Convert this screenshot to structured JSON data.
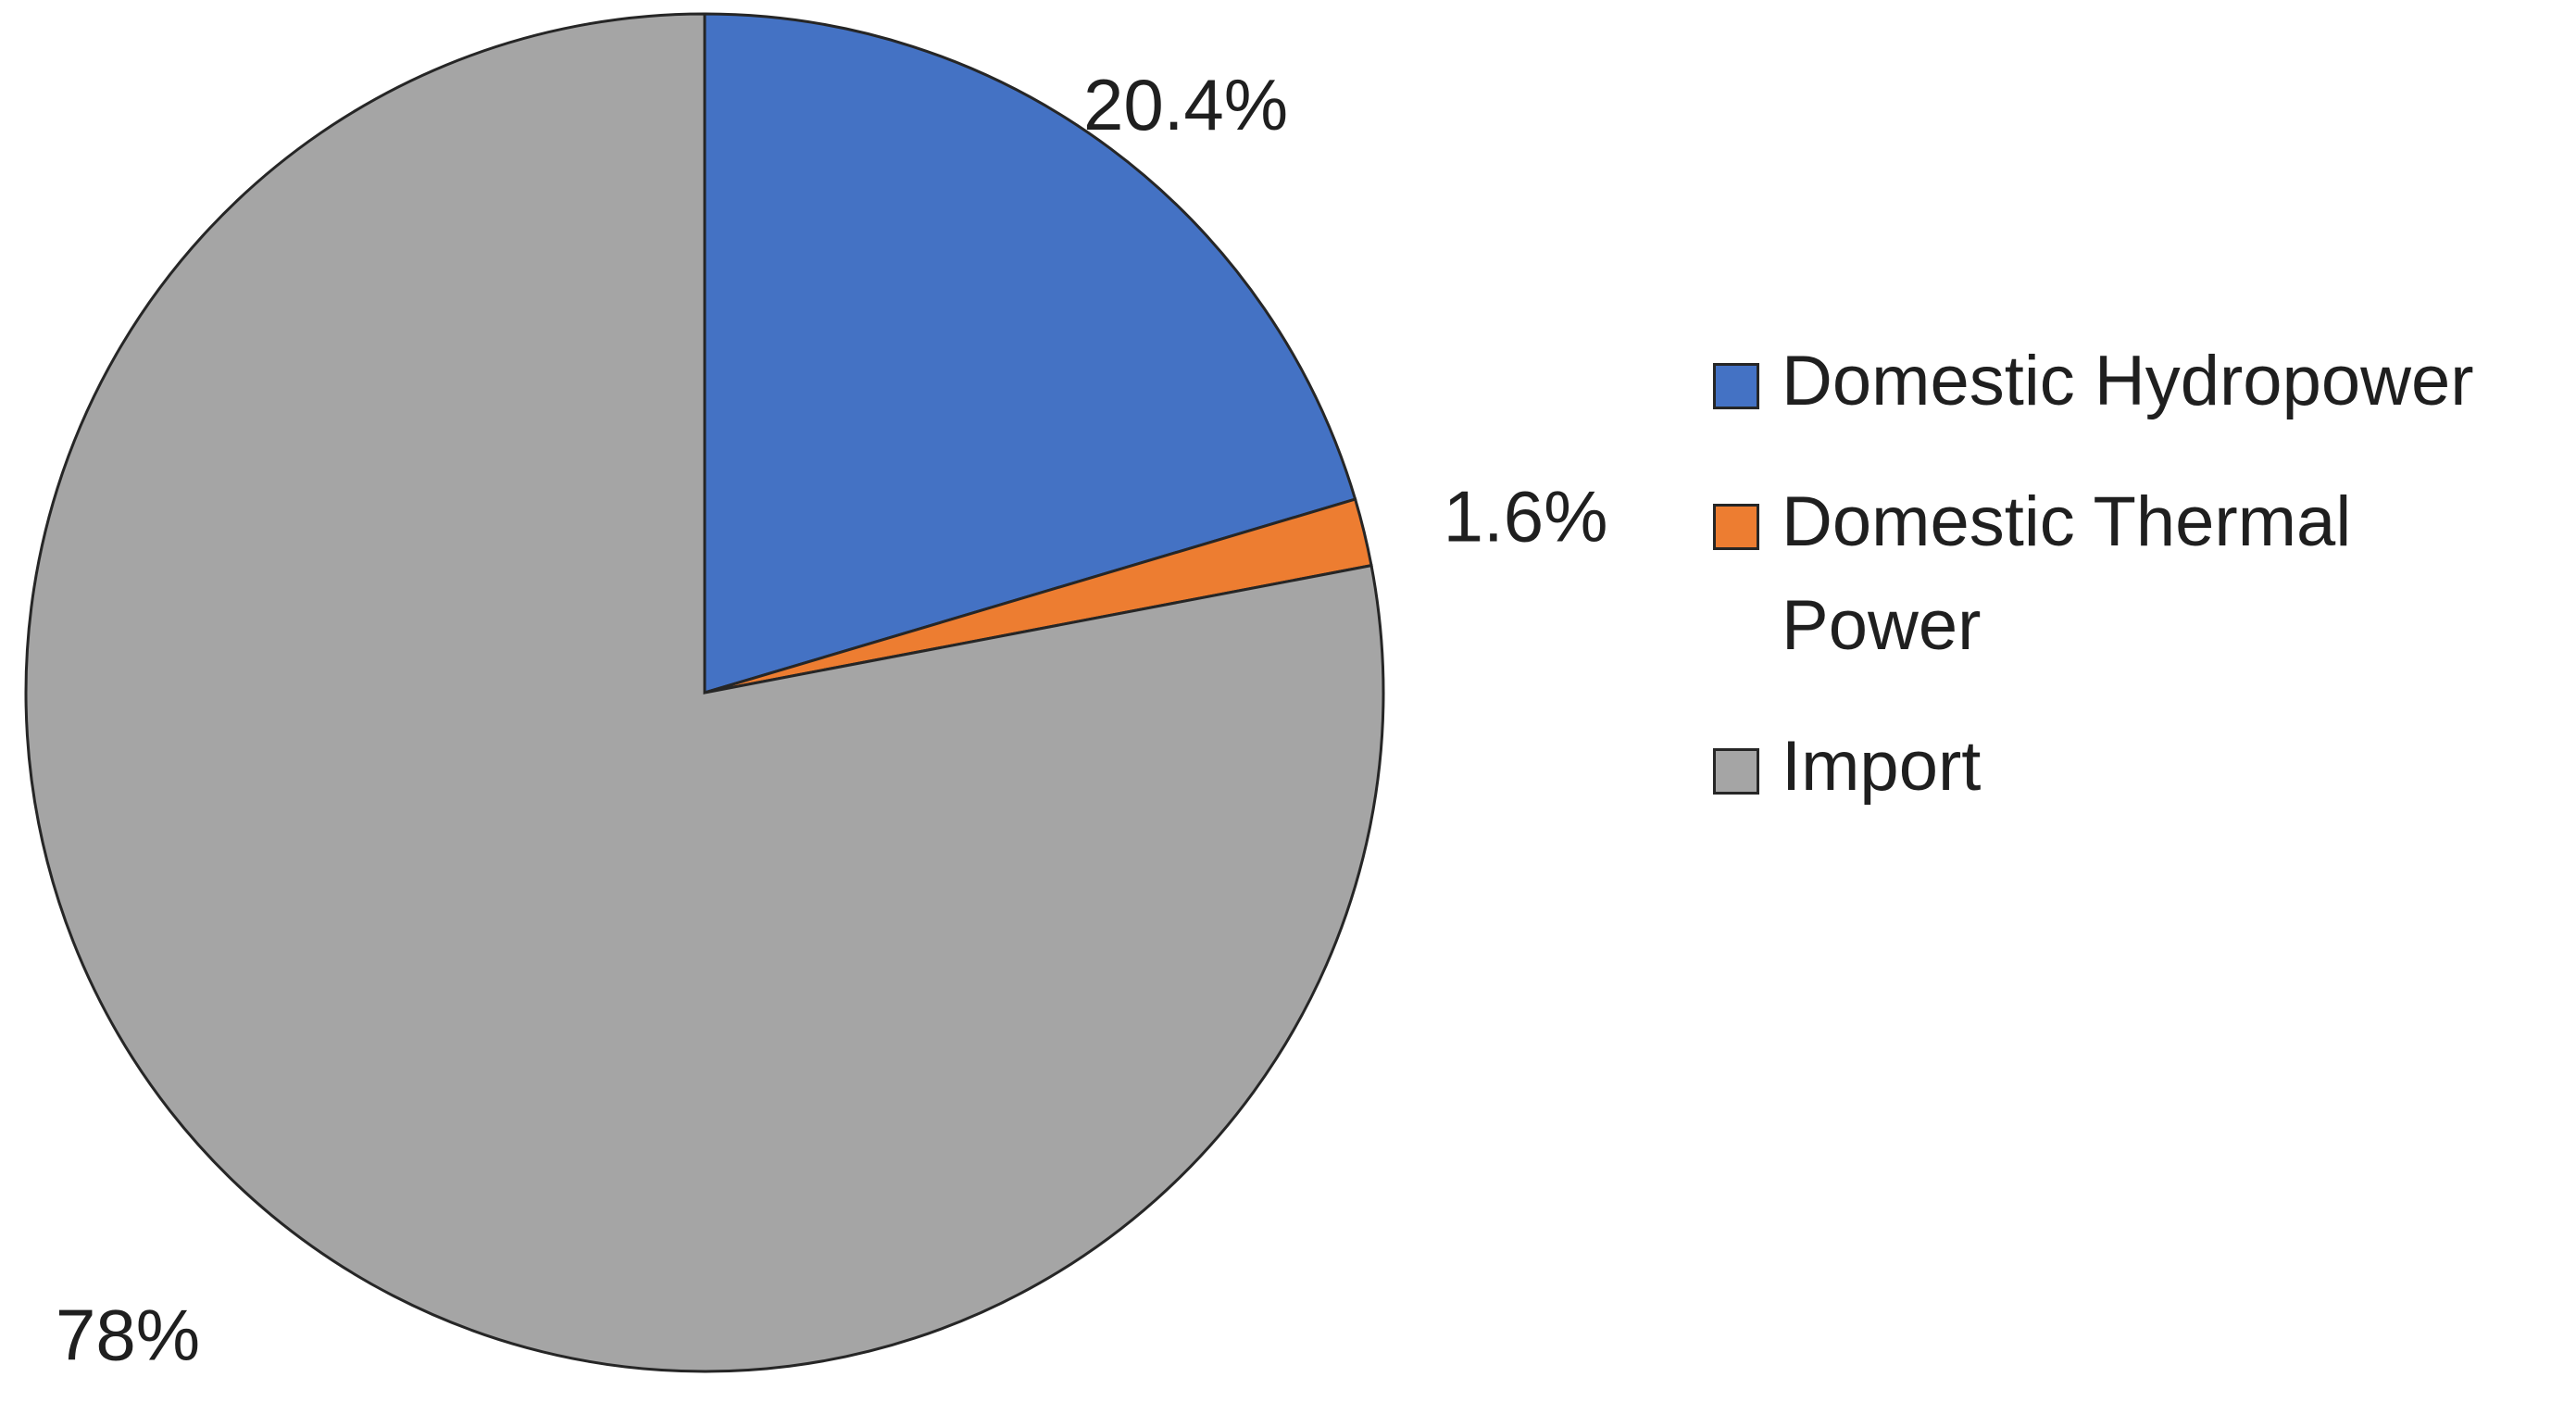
{
  "chart_data": {
    "type": "pie",
    "title": "",
    "categories": [
      "Domestic Hydropower",
      "Domestic Thermal Power",
      "Import"
    ],
    "values": [
      20.4,
      1.6,
      78
    ],
    "data_labels": [
      "20.4%",
      "1.6%",
      "78%"
    ],
    "colors": [
      "#4472C4",
      "#ED7D31",
      "#A5A5A5"
    ],
    "start_angle_deg": 0,
    "direction": "clockwise",
    "legend_position": "right"
  }
}
